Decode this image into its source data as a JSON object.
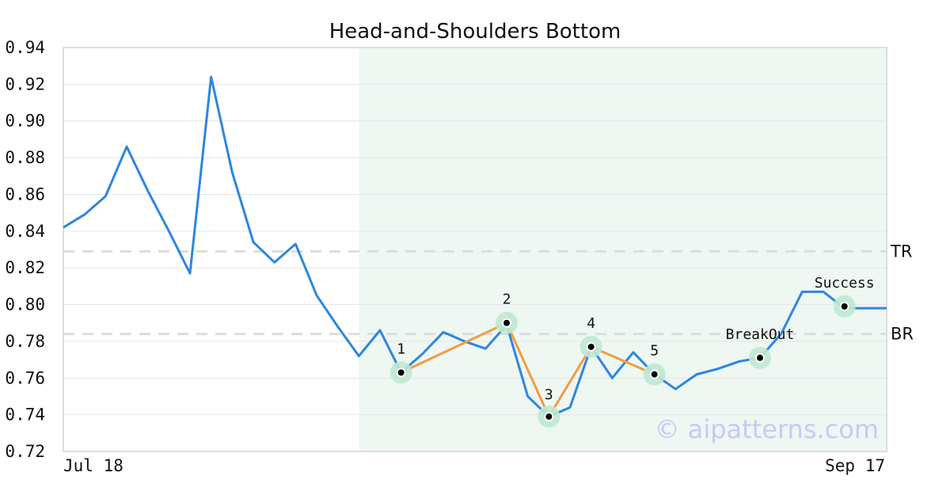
{
  "chart_data": {
    "type": "line",
    "title": "Head-and-Shoulders Bottom",
    "watermark": "© aipatterns.com",
    "x_labels": {
      "start": "Jul 18",
      "end": "Sep 17"
    },
    "ylim": [
      0.72,
      0.94
    ],
    "y_ticks": [
      "0.94",
      "0.92",
      "0.90",
      "0.88",
      "0.86",
      "0.84",
      "0.82",
      "0.80",
      "0.78",
      "0.76",
      "0.74",
      "0.72"
    ],
    "grid": true,
    "num_points": 40,
    "series": [
      {
        "values": [
          0.842,
          0.849,
          0.859,
          0.886,
          0.862,
          0.84,
          0.817,
          0.924,
          0.872,
          0.834,
          0.823,
          0.833,
          0.805,
          0.788,
          0.772,
          0.786,
          0.763,
          0.773,
          0.785,
          0.78,
          0.776,
          0.789,
          0.75,
          0.739,
          0.744,
          0.777,
          0.76,
          0.774,
          0.762,
          0.754,
          0.762,
          0.765,
          0.769,
          0.771,
          0.784,
          0.807,
          0.807,
          0.798,
          0.798,
          0.798
        ],
        "color": "#2e86de"
      }
    ],
    "pattern_region": {
      "start_index": 14,
      "end_index": 39,
      "color": "#eef7f2"
    },
    "pattern_points": [
      {
        "label": "1",
        "index": 16,
        "value": 0.763
      },
      {
        "label": "2",
        "index": 21,
        "value": 0.79
      },
      {
        "label": "3",
        "index": 23,
        "value": 0.739
      },
      {
        "label": "4",
        "index": 25,
        "value": 0.777
      },
      {
        "label": "5",
        "index": 28,
        "value": 0.762
      },
      {
        "label": "BreakOut",
        "index": 33,
        "value": 0.771
      },
      {
        "label": "Success",
        "index": 37,
        "value": 0.799
      }
    ],
    "pattern_line_color": "#f39c40",
    "highlight_color": "#bfe8d3",
    "reference_lines": [
      {
        "label": "TR",
        "value": 0.829
      },
      {
        "label": "BR",
        "value": 0.784
      }
    ]
  }
}
